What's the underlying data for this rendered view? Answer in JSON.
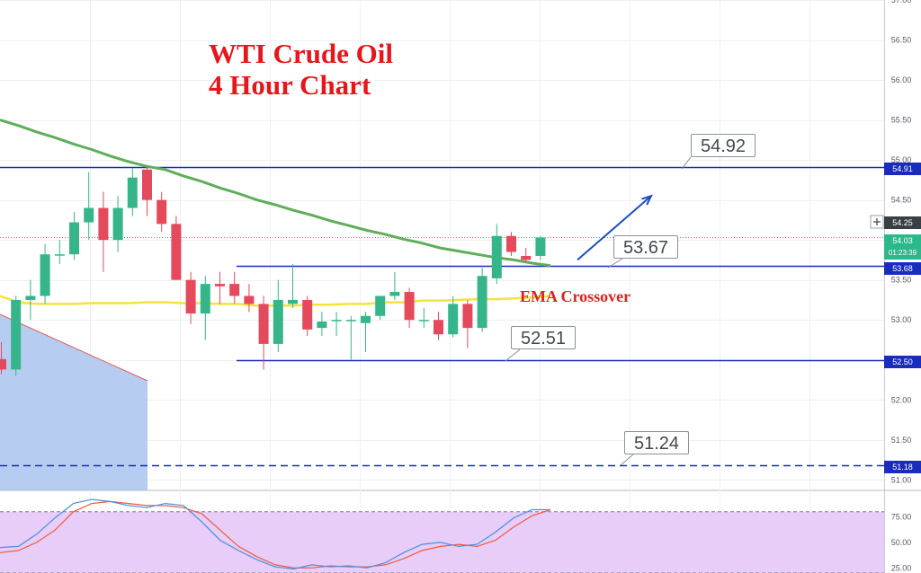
{
  "title": [
    "WTI Crude Oil",
    "4 Hour Chart"
  ],
  "colors": {
    "up": "#36b58b",
    "down": "#e4495c",
    "ema_slow": "#5fae5a",
    "ema_fast": "#f5e23c",
    "level": "#1a2bbf",
    "triangle": "#a9c3ef",
    "stoch_k": "#4a90e2",
    "stoch_d": "#f05a3c",
    "stoch_band": "#e7cdf7"
  },
  "annotations": {
    "ema_crossover": "EMA Crossover",
    "callouts": [
      "54.92",
      "53.67",
      "52.51",
      "51.24"
    ]
  },
  "price_tags": {
    "resistance": "54.91",
    "crosshair": "54.25",
    "last": "54.03",
    "countdown": "01:23:39",
    "pivot": "53.68",
    "support": "52.50",
    "dashed": "51.18"
  },
  "crosshair_icon": "plus-icon",
  "chart_data": {
    "type": "candlestick",
    "title": "WTI Crude Oil 4 Hour Chart",
    "price_axis": {
      "ylim": [
        50.88,
        57.0
      ],
      "ticks": [
        "57.00",
        "56.50",
        "56.00",
        "55.50",
        "55.00",
        "54.50",
        "54.00",
        "53.50",
        "53.00",
        "52.50",
        "52.00",
        "51.50",
        "51.00"
      ]
    },
    "candles": [
      {
        "o": 52.51,
        "h": 52.72,
        "l": 52.32,
        "c": 52.38
      },
      {
        "o": 52.38,
        "h": 53.3,
        "l": 52.3,
        "c": 53.25
      },
      {
        "o": 53.25,
        "h": 53.5,
        "l": 53.0,
        "c": 53.3
      },
      {
        "o": 53.3,
        "h": 53.95,
        "l": 53.2,
        "c": 53.82
      },
      {
        "o": 53.82,
        "h": 54.0,
        "l": 53.7,
        "c": 53.82
      },
      {
        "o": 53.82,
        "h": 54.35,
        "l": 53.75,
        "c": 54.22
      },
      {
        "o": 54.22,
        "h": 54.85,
        "l": 54.0,
        "c": 54.4
      },
      {
        "o": 54.4,
        "h": 54.6,
        "l": 53.6,
        "c": 54.0
      },
      {
        "o": 54.0,
        "h": 54.55,
        "l": 53.85,
        "c": 54.4
      },
      {
        "o": 54.4,
        "h": 54.9,
        "l": 54.3,
        "c": 54.78
      },
      {
        "o": 54.88,
        "h": 54.91,
        "l": 54.3,
        "c": 54.5
      },
      {
        "o": 54.5,
        "h": 54.6,
        "l": 54.1,
        "c": 54.2
      },
      {
        "o": 54.2,
        "h": 54.3,
        "l": 53.5,
        "c": 53.5
      },
      {
        "o": 53.5,
        "h": 53.6,
        "l": 52.95,
        "c": 53.08
      },
      {
        "o": 53.08,
        "h": 53.55,
        "l": 52.75,
        "c": 53.45
      },
      {
        "o": 53.45,
        "h": 53.6,
        "l": 53.2,
        "c": 53.42
      },
      {
        "o": 53.45,
        "h": 53.6,
        "l": 53.2,
        "c": 53.3
      },
      {
        "o": 53.3,
        "h": 53.45,
        "l": 53.1,
        "c": 53.2
      },
      {
        "o": 53.2,
        "h": 53.3,
        "l": 52.38,
        "c": 52.7
      },
      {
        "o": 52.7,
        "h": 53.5,
        "l": 52.6,
        "c": 53.25
      },
      {
        "o": 53.2,
        "h": 53.7,
        "l": 53.15,
        "c": 53.25
      },
      {
        "o": 53.25,
        "h": 53.3,
        "l": 52.8,
        "c": 52.88
      },
      {
        "o": 52.9,
        "h": 53.1,
        "l": 52.8,
        "c": 52.98
      },
      {
        "o": 53.0,
        "h": 53.1,
        "l": 52.8,
        "c": 53.0
      },
      {
        "o": 53.0,
        "h": 53.05,
        "l": 52.5,
        "c": 53.0
      },
      {
        "o": 52.96,
        "h": 53.1,
        "l": 52.6,
        "c": 53.05
      },
      {
        "o": 53.05,
        "h": 53.3,
        "l": 53.0,
        "c": 53.3
      },
      {
        "o": 53.3,
        "h": 53.6,
        "l": 53.25,
        "c": 53.35
      },
      {
        "o": 53.35,
        "h": 53.4,
        "l": 52.9,
        "c": 53.0
      },
      {
        "o": 53.0,
        "h": 53.15,
        "l": 52.9,
        "c": 53.0
      },
      {
        "o": 53.0,
        "h": 53.1,
        "l": 52.75,
        "c": 52.82
      },
      {
        "o": 52.82,
        "h": 53.3,
        "l": 52.78,
        "c": 53.2
      },
      {
        "o": 53.2,
        "h": 53.25,
        "l": 52.65,
        "c": 52.9
      },
      {
        "o": 52.9,
        "h": 53.65,
        "l": 52.85,
        "c": 53.55
      },
      {
        "o": 53.52,
        "h": 54.2,
        "l": 53.45,
        "c": 54.05
      },
      {
        "o": 54.05,
        "h": 54.1,
        "l": 53.8,
        "c": 53.85
      },
      {
        "o": 53.8,
        "h": 53.9,
        "l": 53.72,
        "c": 53.75
      },
      {
        "o": 53.8,
        "h": 54.05,
        "l": 53.75,
        "c": 54.03
      }
    ],
    "ema_slow": [
      55.5,
      55.43,
      55.35,
      55.28,
      55.2,
      55.13,
      55.05,
      54.98,
      54.92,
      54.88,
      54.8,
      54.73,
      54.65,
      54.58,
      54.5,
      54.44,
      54.37,
      54.31,
      54.24,
      54.18,
      54.12,
      54.07,
      54.01,
      53.96,
      53.9,
      53.86,
      53.82,
      53.78,
      53.75,
      53.71,
      53.68
    ],
    "ema_fast": [
      53.3,
      53.22,
      53.2,
      53.2,
      53.2,
      53.21,
      53.21,
      53.21,
      53.22,
      53.22,
      53.21,
      53.21,
      53.2,
      53.2,
      53.18,
      53.18,
      53.18,
      53.19,
      53.19,
      53.2,
      53.2,
      53.22,
      53.22,
      53.24,
      53.24,
      53.25,
      53.26,
      53.26,
      53.27,
      53.28,
      53.3
    ],
    "levels": [
      {
        "value": 54.91,
        "style": "solid"
      },
      {
        "value": 53.68,
        "style": "solid"
      },
      {
        "value": 52.5,
        "style": "solid"
      },
      {
        "value": 51.18,
        "style": "dashed"
      }
    ],
    "arrow": {
      "from": 53.75,
      "to": 54.55
    },
    "stochastic": {
      "ylim": [
        20,
        100
      ],
      "ticks": [
        "75.00",
        "50.00",
        "25.00"
      ],
      "band": [
        80,
        20
      ],
      "k": [
        45,
        46,
        58,
        74,
        88,
        92,
        90,
        86,
        84,
        88,
        86,
        70,
        52,
        42,
        33,
        26,
        24,
        28,
        26,
        27,
        25,
        30,
        40,
        48,
        50,
        46,
        48,
        60,
        74,
        82,
        82
      ],
      "d": [
        40,
        42,
        50,
        62,
        80,
        88,
        90,
        88,
        86,
        86,
        84,
        78,
        62,
        46,
        36,
        28,
        25,
        25,
        27,
        26,
        26,
        28,
        34,
        42,
        46,
        48,
        46,
        52,
        65,
        76,
        82
      ]
    }
  }
}
